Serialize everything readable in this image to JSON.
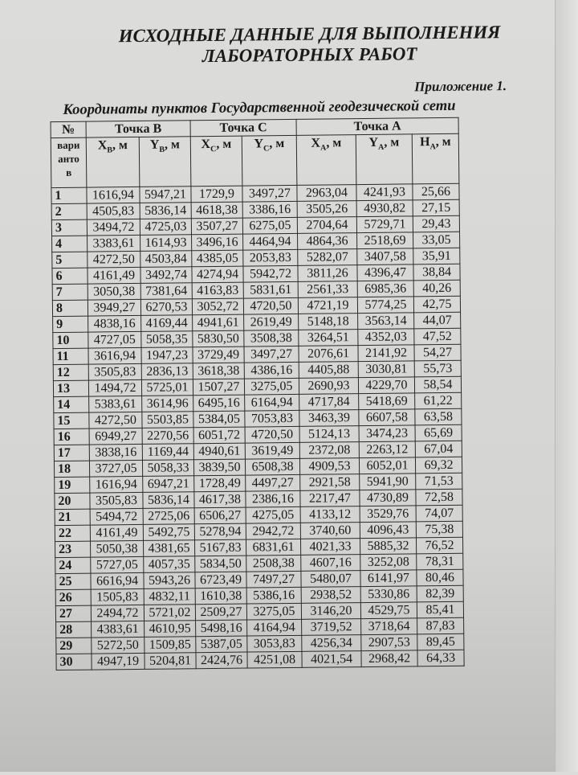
{
  "title_line1": "ИСХОДНЫЕ ДАННЫЕ ДЛЯ ВЫПОЛНЕНИЯ",
  "title_line2": "ЛАБОРАТОРНЫХ РАБОТ",
  "appendix": "Приложение 1.",
  "table_title": "Координаты пунктов Государственной геодезической сети",
  "header": {
    "no": "№",
    "variant": "вари анто в",
    "groups": [
      "Точка B",
      "Точка C",
      "Точка A"
    ],
    "columns": [
      {
        "sym": "X",
        "sub": "B",
        "unit": ", м"
      },
      {
        "sym": "Y",
        "sub": "B",
        "unit": ", м"
      },
      {
        "sym": "X",
        "sub": "C",
        "unit": ", м"
      },
      {
        "sym": "Y",
        "sub": "C",
        "unit": ", м"
      },
      {
        "sym": "X",
        "sub": "A",
        "unit": ", м"
      },
      {
        "sym": "Y",
        "sub": "A",
        "unit": ", м"
      },
      {
        "sym": "H",
        "sub": "A",
        "unit": ", м"
      }
    ]
  },
  "rows": [
    [
      "1",
      "1616,94",
      "5947,21",
      "1729,9",
      "3497,27",
      "2963,04",
      "4241,93",
      "25,66"
    ],
    [
      "2",
      "4505,83",
      "5836,14",
      "4618,38",
      "3386,16",
      "3505,26",
      "4930,82",
      "27,15"
    ],
    [
      "3",
      "3494,72",
      "4725,03",
      "3507,27",
      "6275,05",
      "2704,64",
      "5729,71",
      "29,43"
    ],
    [
      "4",
      "3383,61",
      "1614,93",
      "3496,16",
      "4464,94",
      "4864,36",
      "2518,69",
      "33,05"
    ],
    [
      "5",
      "4272,50",
      "4503,84",
      "4385,05",
      "2053,83",
      "5282,07",
      "3407,58",
      "35,91"
    ],
    [
      "6",
      "4161,49",
      "3492,74",
      "4274,94",
      "5942,72",
      "3811,26",
      "4396,47",
      "38,84"
    ],
    [
      "7",
      "3050,38",
      "7381,64",
      "4163,83",
      "5831,61",
      "2561,33",
      "6985,36",
      "40,26"
    ],
    [
      "8",
      "3949,27",
      "6270,53",
      "3052,72",
      "4720,50",
      "4721,19",
      "5774,25",
      "42,75"
    ],
    [
      "9",
      "4838,16",
      "4169,44",
      "4941,61",
      "2619,49",
      "5148,18",
      "3563,14",
      "44,07"
    ],
    [
      "10",
      "4727,05",
      "5058,35",
      "5830,50",
      "3508,38",
      "3264,51",
      "4352,03",
      "47,52"
    ],
    [
      "11",
      "3616,94",
      "1947,23",
      "3729,49",
      "3497,27",
      "2076,61",
      "2141,92",
      "54,27"
    ],
    [
      "12",
      "3505,83",
      "2836,13",
      "3618,38",
      "4386,16",
      "4405,88",
      "3030,81",
      "55,73"
    ],
    [
      "13",
      "1494,72",
      "5725,01",
      "1507,27",
      "3275,05",
      "2690,93",
      "4229,70",
      "58,54"
    ],
    [
      "14",
      "5383,61",
      "3614,96",
      "6495,16",
      "6164,94",
      "4717,84",
      "5418,69",
      "61,22"
    ],
    [
      "15",
      "4272,50",
      "5503,85",
      "5384,05",
      "7053,83",
      "3463,39",
      "6607,58",
      "63,58"
    ],
    [
      "16",
      "6949,27",
      "2270,56",
      "6051,72",
      "4720,50",
      "5124,13",
      "3474,23",
      "65,69"
    ],
    [
      "17",
      "3838,16",
      "1169,44",
      "4940,61",
      "3619,49",
      "2372,08",
      "2263,12",
      "67,04"
    ],
    [
      "18",
      "3727,05",
      "5058,33",
      "3839,50",
      "6508,38",
      "4909,53",
      "6052,01",
      "69,32"
    ],
    [
      "19",
      "1616,94",
      "6947,21",
      "1728,49",
      "4497,27",
      "2921,58",
      "5941,90",
      "71,53"
    ],
    [
      "20",
      "3505,83",
      "5836,14",
      "4617,38",
      "2386,16",
      "2217,47",
      "4730,89",
      "72,58"
    ],
    [
      "21",
      "5494,72",
      "2725,06",
      "6506,27",
      "4275,05",
      "4133,12",
      "3529,76",
      "74,07"
    ],
    [
      "22",
      "4161,49",
      "5492,75",
      "5278,94",
      "2942,72",
      "3740,60",
      "4096,43",
      "75,38"
    ],
    [
      "23",
      "5050,38",
      "4381,65",
      "5167,83",
      "6831,61",
      "4021,33",
      "5885,32",
      "76,52"
    ],
    [
      "24",
      "5727,05",
      "4057,35",
      "5834,50",
      "2508,38",
      "4607,16",
      "3252,08",
      "78,31"
    ],
    [
      "25",
      "6616,94",
      "5943,26",
      "6723,49",
      "7497,27",
      "5480,07",
      "6141,97",
      "80,46"
    ],
    [
      "26",
      "1505,83",
      "4832,11",
      "1610,38",
      "5386,16",
      "2938,52",
      "5330,86",
      "82,39"
    ],
    [
      "27",
      "2494,72",
      "5721,02",
      "2509,27",
      "3275,05",
      "3146,20",
      "4529,75",
      "85,41"
    ],
    [
      "28",
      "4383,61",
      "4610,95",
      "5498,16",
      "4164,94",
      "3719,52",
      "3718,64",
      "87,83"
    ],
    [
      "29",
      "5272,50",
      "1509,85",
      "5387,05",
      "3053,83",
      "4256,34",
      "2907,53",
      "89,45"
    ],
    [
      "30",
      "4947,19",
      "5204,81",
      "2424,76",
      "4251,08",
      "4021,54",
      "2968,42",
      "64,33"
    ]
  ]
}
